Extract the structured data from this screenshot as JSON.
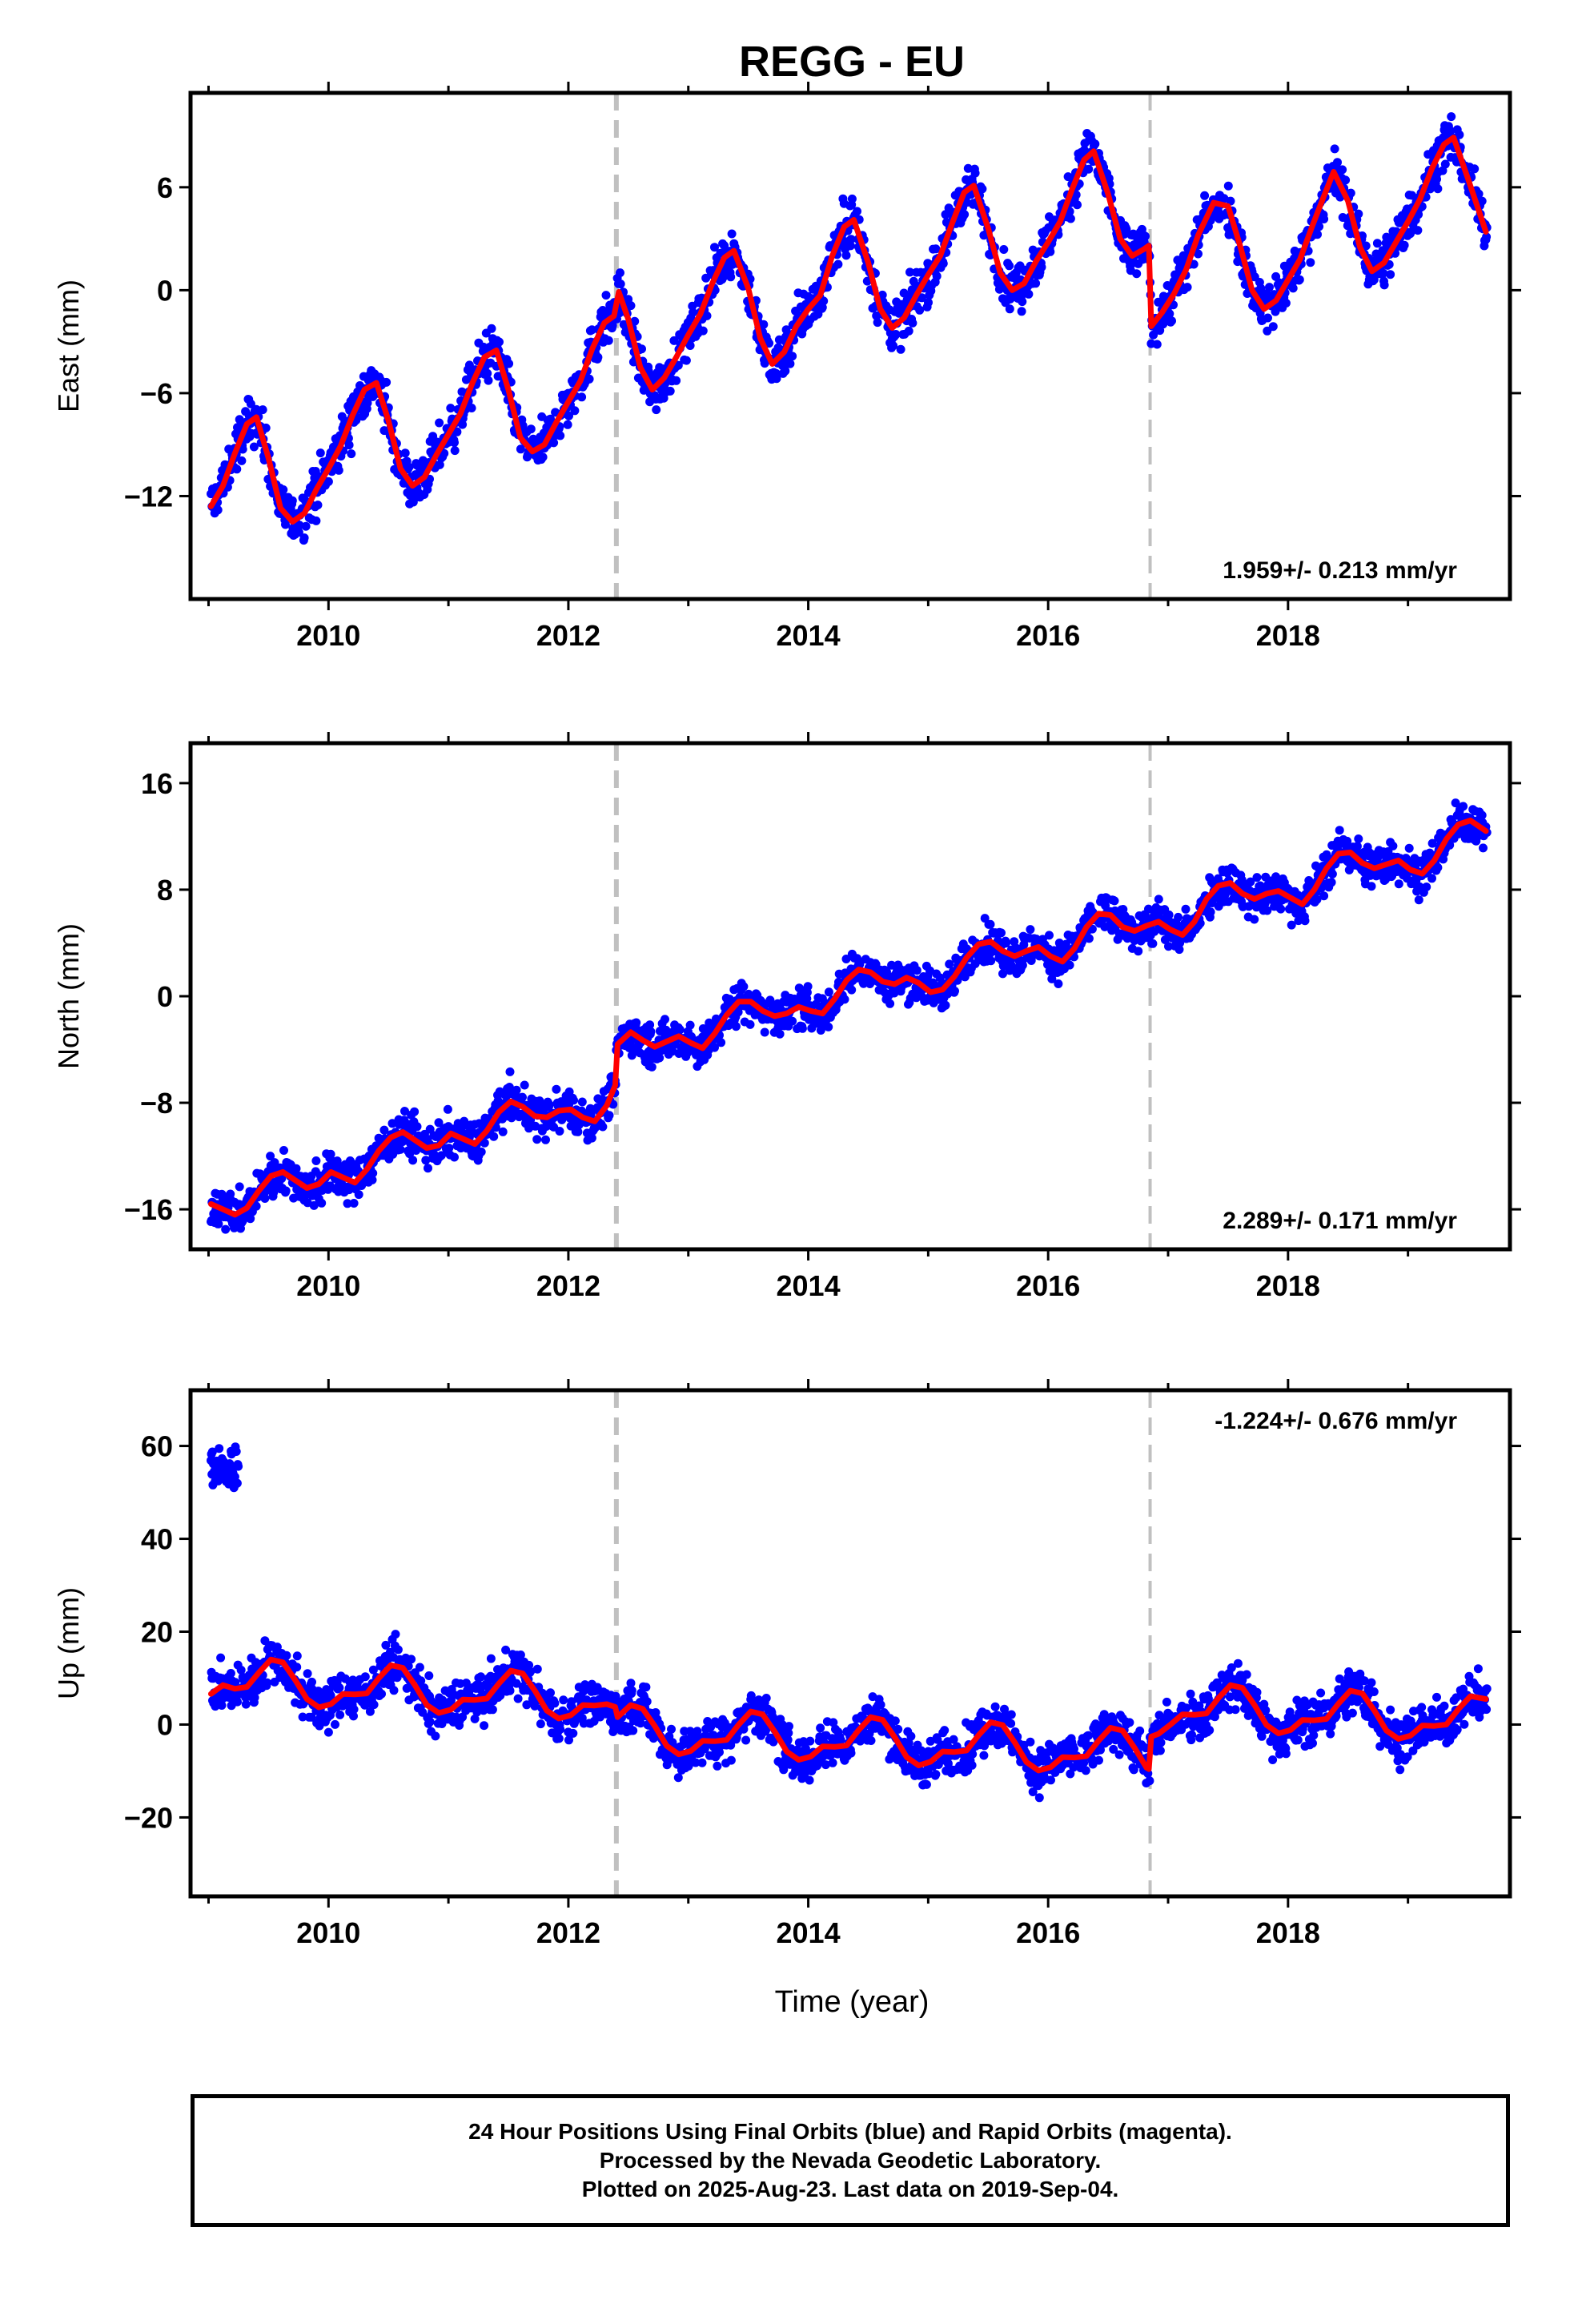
{
  "title": "REGG - EU",
  "xlabel": "Time (year)",
  "footer": {
    "line1": "24 Hour Positions Using Final Orbits (blue) and Rapid Orbits (magenta).",
    "line2": "Processed by the Nevada Geodetic Laboratory.",
    "line3": "Plotted on 2025-Aug-23. Last data on 2019-Sep-04."
  },
  "colors": {
    "points": "#0000ff",
    "model": "#ff0000",
    "breaks": "#c0c0c0",
    "frame": "#000000"
  },
  "chart_data": [
    {
      "type": "scatter",
      "ylabel": "East (mm)",
      "rate_label": "1.959+/- 0.213 mm/yr",
      "xlim": [
        2008.85,
        2019.85
      ],
      "ylim": [
        -18,
        11.5
      ],
      "xticks": [
        2010,
        2012,
        2014,
        2016,
        2018
      ],
      "yticks": [
        -12,
        -6,
        0,
        6
      ],
      "ytick_labels": [
        "−12",
        "−6",
        "0",
        "6"
      ],
      "breaks": [
        2012.4,
        2016.85
      ],
      "model": {
        "x": [
          2009.02,
          2009.12,
          2009.22,
          2009.32,
          2009.4,
          2009.5,
          2009.6,
          2009.7,
          2009.8,
          2009.9,
          2010.0,
          2010.1,
          2010.2,
          2010.3,
          2010.4,
          2010.5,
          2010.6,
          2010.7,
          2010.8,
          2010.9,
          2011.0,
          2011.1,
          2011.2,
          2011.3,
          2011.4,
          2011.5,
          2011.6,
          2011.7,
          2011.8,
          2011.9,
          2012.0,
          2012.1,
          2012.2,
          2012.3,
          2012.38,
          2012.42,
          2012.5,
          2012.6,
          2012.7,
          2012.8,
          2012.9,
          2013.0,
          2013.1,
          2013.2,
          2013.3,
          2013.38,
          2013.5,
          2013.6,
          2013.7,
          2013.8,
          2013.9,
          2014.0,
          2014.1,
          2014.2,
          2014.3,
          2014.38,
          2014.5,
          2014.6,
          2014.7,
          2014.8,
          2014.9,
          2015.0,
          2015.1,
          2015.2,
          2015.3,
          2015.38,
          2015.5,
          2015.6,
          2015.7,
          2015.8,
          2015.9,
          2016.0,
          2016.1,
          2016.2,
          2016.3,
          2016.38,
          2016.5,
          2016.6,
          2016.7,
          2016.8,
          2016.84,
          2016.86,
          2016.95,
          2017.05,
          2017.15,
          2017.25,
          2017.38,
          2017.5,
          2017.6,
          2017.7,
          2017.8,
          2017.9,
          2018.0,
          2018.1,
          2018.2,
          2018.3,
          2018.38,
          2018.5,
          2018.6,
          2018.7,
          2018.8,
          2018.9,
          2019.0,
          2019.1,
          2019.2,
          2019.3,
          2019.38,
          2019.5,
          2019.65
        ],
        "y": [
          -12.6,
          -11.4,
          -9.5,
          -7.8,
          -7.4,
          -9.8,
          -12.7,
          -13.5,
          -13.0,
          -11.6,
          -10.4,
          -9.1,
          -7.3,
          -5.8,
          -5.4,
          -7.6,
          -10.4,
          -11.4,
          -10.9,
          -9.6,
          -8.4,
          -7.2,
          -5.4,
          -3.9,
          -3.5,
          -5.8,
          -8.6,
          -9.4,
          -9.0,
          -7.7,
          -6.5,
          -5.3,
          -3.4,
          -1.9,
          -1.5,
          -0.1,
          -1.7,
          -4.5,
          -5.8,
          -5.1,
          -3.9,
          -2.6,
          -1.4,
          0.4,
          1.9,
          2.3,
          0.1,
          -2.8,
          -4.3,
          -3.6,
          -2.1,
          -1.1,
          -0.3,
          2.0,
          3.7,
          4.1,
          1.6,
          -1.1,
          -2.2,
          -1.6,
          -0.3,
          0.9,
          2.0,
          3.9,
          5.7,
          6.1,
          3.6,
          1.0,
          0.0,
          0.4,
          1.7,
          2.8,
          4.0,
          5.9,
          7.6,
          8.1,
          5.6,
          3.0,
          2.0,
          2.4,
          2.6,
          -2.1,
          -1.3,
          -0.2,
          1.2,
          3.2,
          5.1,
          4.9,
          2.6,
          0.0,
          -1.1,
          -0.6,
          0.6,
          1.8,
          3.7,
          5.5,
          6.9,
          5.2,
          2.5,
          1.1,
          1.6,
          2.8,
          4.0,
          5.3,
          7.1,
          8.5,
          8.9,
          6.5,
          3.4
        ]
      }
    },
    {
      "type": "scatter",
      "ylabel": "North (mm)",
      "rate_label": "2.289+/- 0.171 mm/yr",
      "xlim": [
        2008.85,
        2019.85
      ],
      "ylim": [
        -19,
        19
      ],
      "xticks": [
        2010,
        2012,
        2014,
        2016,
        2018
      ],
      "yticks": [
        -16,
        -8,
        0,
        8,
        16
      ],
      "ytick_labels": [
        "−16",
        "−8",
        "0",
        "8",
        "16"
      ],
      "breaks": [
        2012.4,
        2016.85
      ],
      "model": {
        "x": [
          2009.02,
          2009.12,
          2009.22,
          2009.32,
          2009.42,
          2009.52,
          2009.62,
          2009.72,
          2009.82,
          2009.92,
          2010.02,
          2010.12,
          2010.22,
          2010.32,
          2010.42,
          2010.52,
          2010.62,
          2010.72,
          2010.82,
          2010.92,
          2011.02,
          2011.12,
          2011.22,
          2011.32,
          2011.42,
          2011.52,
          2011.62,
          2011.72,
          2011.82,
          2011.92,
          2012.02,
          2012.12,
          2012.22,
          2012.32,
          2012.39,
          2012.41,
          2012.52,
          2012.62,
          2012.72,
          2012.82,
          2012.92,
          2013.02,
          2013.12,
          2013.22,
          2013.32,
          2013.42,
          2013.52,
          2013.62,
          2013.72,
          2013.82,
          2013.92,
          2014.02,
          2014.12,
          2014.22,
          2014.32,
          2014.42,
          2014.52,
          2014.62,
          2014.72,
          2014.82,
          2014.92,
          2015.02,
          2015.12,
          2015.22,
          2015.32,
          2015.42,
          2015.52,
          2015.62,
          2015.72,
          2015.82,
          2015.92,
          2016.02,
          2016.12,
          2016.22,
          2016.32,
          2016.42,
          2016.52,
          2016.62,
          2016.72,
          2016.82,
          2016.92,
          2017.02,
          2017.12,
          2017.22,
          2017.32,
          2017.42,
          2017.52,
          2017.62,
          2017.72,
          2017.82,
          2017.92,
          2018.02,
          2018.12,
          2018.22,
          2018.32,
          2018.42,
          2018.52,
          2018.62,
          2018.72,
          2018.82,
          2018.92,
          2019.02,
          2019.12,
          2019.22,
          2019.32,
          2019.42,
          2019.52,
          2019.65
        ],
        "y": [
          -15.6,
          -16.0,
          -16.4,
          -15.9,
          -14.6,
          -13.5,
          -13.2,
          -13.8,
          -14.4,
          -14.1,
          -13.2,
          -13.6,
          -14.0,
          -13.0,
          -11.6,
          -10.6,
          -10.2,
          -10.8,
          -11.4,
          -11.2,
          -10.3,
          -10.7,
          -11.1,
          -10.1,
          -8.7,
          -7.9,
          -8.3,
          -9.0,
          -9.1,
          -8.6,
          -8.5,
          -9.1,
          -9.4,
          -8.2,
          -6.7,
          -3.6,
          -2.7,
          -3.3,
          -3.8,
          -3.4,
          -3.0,
          -3.5,
          -3.9,
          -2.8,
          -1.4,
          -0.4,
          -0.4,
          -1.1,
          -1.5,
          -1.3,
          -0.8,
          -1.1,
          -1.3,
          -0.2,
          1.2,
          2.0,
          1.8,
          1.1,
          0.9,
          1.4,
          1.0,
          0.3,
          0.5,
          1.5,
          2.9,
          3.9,
          4.1,
          3.4,
          3.0,
          3.4,
          3.7,
          3.0,
          2.6,
          3.6,
          5.2,
          6.2,
          6.1,
          5.2,
          4.9,
          5.3,
          5.6,
          5.0,
          4.6,
          5.6,
          7.3,
          8.3,
          8.5,
          7.7,
          7.3,
          7.7,
          7.9,
          7.4,
          6.9,
          8.0,
          9.6,
          10.7,
          10.8,
          10.0,
          9.6,
          9.9,
          10.2,
          9.5,
          9.2,
          10.2,
          11.8,
          12.9,
          13.2,
          12.4
        ]
      }
    },
    {
      "type": "scatter",
      "ylabel": "Up (mm)",
      "rate_label": "-1.224+/- 0.676 mm/yr",
      "xlim": [
        2008.85,
        2019.85
      ],
      "ylim": [
        -37,
        72
      ],
      "xticks": [
        2010,
        2012,
        2014,
        2016,
        2018
      ],
      "yticks": [
        -20,
        0,
        20,
        40,
        60
      ],
      "ytick_labels": [
        "−20",
        "0",
        "20",
        "40",
        "60"
      ],
      "breaks": [
        2012.4,
        2016.85
      ],
      "outlier_cluster": {
        "x_range": [
          2009.02,
          2009.25
        ],
        "y_center": 55
      },
      "model": {
        "x": [
          2009.02,
          2009.12,
          2009.22,
          2009.32,
          2009.42,
          2009.52,
          2009.62,
          2009.72,
          2009.82,
          2009.92,
          2010.02,
          2010.12,
          2010.22,
          2010.32,
          2010.42,
          2010.52,
          2010.62,
          2010.72,
          2010.82,
          2010.92,
          2011.02,
          2011.12,
          2011.22,
          2011.32,
          2011.42,
          2011.52,
          2011.62,
          2011.72,
          2011.82,
          2011.92,
          2012.02,
          2012.12,
          2012.22,
          2012.32,
          2012.39,
          2012.41,
          2012.52,
          2012.62,
          2012.72,
          2012.82,
          2012.92,
          2013.02,
          2013.12,
          2013.22,
          2013.32,
          2013.42,
          2013.52,
          2013.62,
          2013.72,
          2013.82,
          2013.92,
          2014.02,
          2014.12,
          2014.22,
          2014.32,
          2014.42,
          2014.52,
          2014.62,
          2014.72,
          2014.82,
          2014.92,
          2015.02,
          2015.12,
          2015.22,
          2015.32,
          2015.42,
          2015.52,
          2015.62,
          2015.72,
          2015.82,
          2015.92,
          2016.02,
          2016.12,
          2016.22,
          2016.32,
          2016.42,
          2016.52,
          2016.62,
          2016.72,
          2016.82,
          2016.84,
          2016.86,
          2016.92,
          2017.02,
          2017.12,
          2017.22,
          2017.32,
          2017.42,
          2017.52,
          2017.62,
          2017.72,
          2017.82,
          2017.92,
          2018.02,
          2018.12,
          2018.22,
          2018.32,
          2018.42,
          2018.52,
          2018.62,
          2018.72,
          2018.82,
          2018.92,
          2019.02,
          2019.12,
          2019.22,
          2019.32,
          2019.42,
          2019.52,
          2019.65
        ],
        "y": [
          6.6,
          8.5,
          7.7,
          8.1,
          11.2,
          14.0,
          13.4,
          9.7,
          5.5,
          3.7,
          4.4,
          6.6,
          6.5,
          6.7,
          10.0,
          12.8,
          12.2,
          8.5,
          4.2,
          2.5,
          3.2,
          5.4,
          5.3,
          5.6,
          8.8,
          11.6,
          11.0,
          7.3,
          3.0,
          1.3,
          2.0,
          4.2,
          4.1,
          4.4,
          3.8,
          1.6,
          4.2,
          3.4,
          -0.3,
          -4.6,
          -6.4,
          -5.7,
          -3.5,
          -3.6,
          -3.3,
          0.0,
          2.8,
          2.2,
          -1.5,
          -5.8,
          -7.6,
          -6.9,
          -4.7,
          -4.8,
          -4.5,
          -1.2,
          1.6,
          1.0,
          -2.7,
          -7.0,
          -8.8,
          -8.0,
          -5.8,
          -5.9,
          -5.6,
          -2.3,
          0.5,
          -0.1,
          -3.8,
          -8.1,
          -9.9,
          -9.2,
          -7.0,
          -7.1,
          -6.8,
          -3.5,
          -0.7,
          -1.3,
          -5.0,
          -9.3,
          -9.6,
          -2.6,
          -2.0,
          0.0,
          2.2,
          2.1,
          2.4,
          5.7,
          8.5,
          7.9,
          4.2,
          -0.1,
          -1.9,
          -1.2,
          1.0,
          0.9,
          1.2,
          4.5,
          7.3,
          6.7,
          3.0,
          -1.3,
          -3.1,
          -2.4,
          -0.2,
          -0.3,
          0.0,
          3.3,
          6.1,
          5.5
        ]
      }
    }
  ]
}
